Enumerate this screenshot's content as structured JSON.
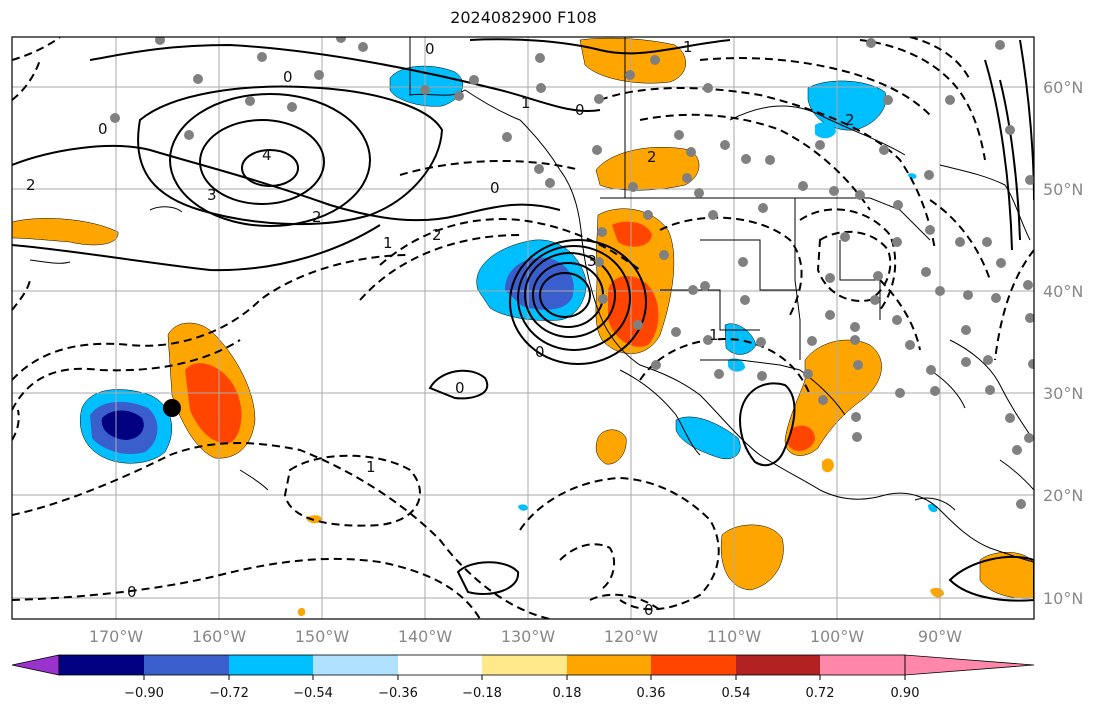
{
  "title": "2024082900 F108",
  "lon_labels": [
    "170°W",
    "160°W",
    "150°W",
    "140°W",
    "130°W",
    "120°W",
    "110°W",
    "100°W",
    "90°W"
  ],
  "lat_labels": [
    "60°N",
    "50°N",
    "40°N",
    "30°N",
    "20°N",
    "10°N"
  ],
  "colorbar": {
    "tick_labels": [
      "−0.90",
      "−0.72",
      "−0.54",
      "−0.36",
      "−0.18",
      "0.18",
      "0.36",
      "0.54",
      "0.72",
      "0.90"
    ],
    "colors": [
      "#9a32cd",
      "#000080",
      "#3a5fcd",
      "#00bfff",
      "#b0e2ff",
      "#ffffff",
      "#ffe98a",
      "#ffa500",
      "#ff4500",
      "#b22222",
      "#ff88aa"
    ]
  },
  "contour_labels": [
    {
      "text": "0",
      "kind": "solid"
    },
    {
      "text": "0",
      "kind": "solid"
    },
    {
      "text": "0",
      "kind": "solid"
    },
    {
      "text": "1",
      "kind": "solid"
    },
    {
      "text": "1",
      "kind": "solid"
    },
    {
      "text": "2",
      "kind": "solid"
    },
    {
      "text": "2",
      "kind": "solid"
    },
    {
      "text": "3",
      "kind": "solid"
    },
    {
      "text": "4",
      "kind": "solid"
    },
    {
      "text": "0",
      "kind": "dashed"
    },
    {
      "text": "1",
      "kind": "dashed"
    },
    {
      "text": "2",
      "kind": "dashed"
    },
    {
      "text": "1",
      "kind": "dashed"
    },
    {
      "text": "0",
      "kind": "dashed"
    },
    {
      "text": "0",
      "kind": "dashed"
    },
    {
      "text": "3",
      "kind": "dashed"
    },
    {
      "text": "2",
      "kind": "dashed"
    },
    {
      "text": "1",
      "kind": "dashed"
    },
    {
      "text": "0",
      "kind": "dashed"
    },
    {
      "text": "2",
      "kind": "dashed"
    },
    {
      "text": "0",
      "kind": "solid"
    },
    {
      "text": "0",
      "kind": "dashed"
    }
  ],
  "marker": {
    "lon": -164.5,
    "lat": 28.6,
    "color": "#000000"
  }
}
